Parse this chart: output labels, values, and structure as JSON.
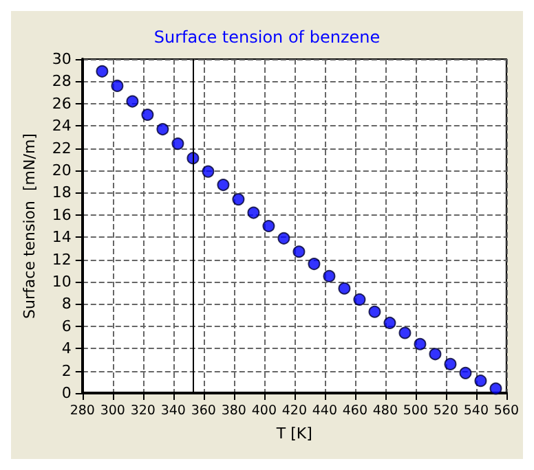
{
  "chart_data": {
    "type": "scatter",
    "title": "Surface tension of benzene",
    "xlabel": "T [K]",
    "ylabel": "Surface tension  [mN/m]",
    "x": [
      293,
      303,
      313,
      323,
      333,
      343,
      353,
      363,
      373,
      383,
      393,
      403,
      413,
      423,
      433,
      443,
      453,
      463,
      473,
      483,
      493,
      503,
      513,
      523,
      533,
      543,
      553
    ],
    "series": [
      {
        "color": "#0000ff",
        "values": [
          28.9,
          27.6,
          26.2,
          25.0,
          23.7,
          22.4,
          21.1,
          19.9,
          18.7,
          17.4,
          16.2,
          15.0,
          13.9,
          12.7,
          11.6,
          10.5,
          9.4,
          8.4,
          7.3,
          6.3,
          5.4,
          4.4,
          3.5,
          2.6,
          1.8,
          1.1,
          0.4
        ]
      }
    ],
    "xlim": [
      280,
      560
    ],
    "xticks": [
      280,
      300,
      320,
      340,
      360,
      380,
      400,
      420,
      440,
      460,
      480,
      500,
      520,
      540,
      560
    ],
    "ylim": [
      0,
      30
    ],
    "yticks": [
      0,
      2,
      4,
      6,
      8,
      10,
      12,
      14,
      16,
      18,
      20,
      22,
      24,
      26,
      28,
      30
    ],
    "ref_lines": [
      {
        "axis": "x",
        "value": 353,
        "color": "#000000"
      }
    ],
    "grid": true,
    "marker": "circle"
  }
}
